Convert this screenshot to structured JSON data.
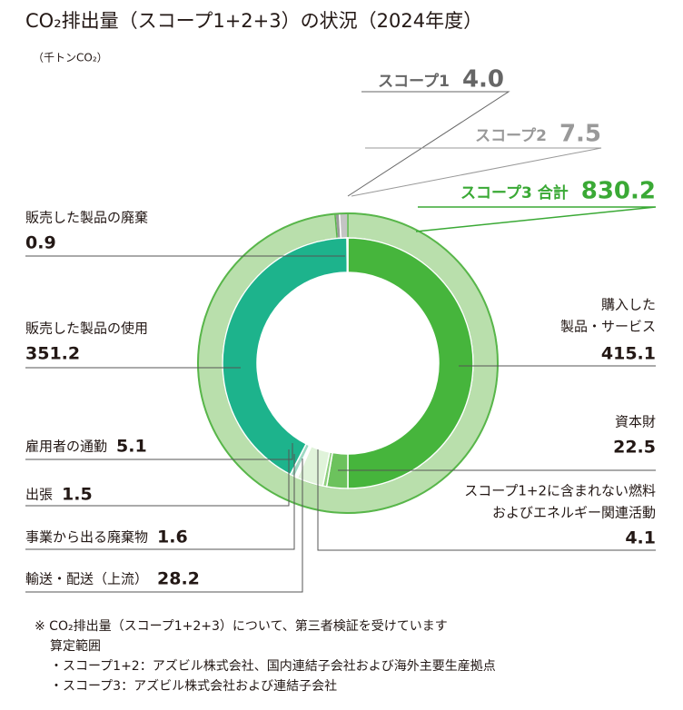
{
  "chart_data": {
    "type": "donut",
    "title": "CO₂排出量（スコープ1+2+3）の状況（2024年度）",
    "unit": "（千トンCO₂）",
    "outer": {
      "categories": [
        "スコープ1",
        "スコープ2",
        "スコープ3 合計"
      ],
      "values": [
        4.0,
        7.5,
        830.2
      ],
      "value_labels": [
        "4.0",
        "7.5",
        "830.2"
      ],
      "colors": [
        "#9a9a9a",
        "#c4c4c4",
        "#b9dfac"
      ]
    },
    "inner": {
      "categories": [
        [
          "購入した",
          "製品・サービス"
        ],
        [
          "資本財"
        ],
        [
          "スコープ1+2に含まれない燃料",
          "およびエネルギー関連活動"
        ],
        [
          "輸送・配送（上流）"
        ],
        [
          "事業から出る廃棄物"
        ],
        [
          "出張"
        ],
        [
          "雇用者の通勤"
        ],
        [
          "販売した製品の使用"
        ],
        [
          "販売した製品の廃棄"
        ]
      ],
      "values": [
        415.1,
        22.5,
        4.1,
        28.2,
        1.6,
        1.5,
        5.1,
        351.2,
        0.9
      ],
      "colors": [
        "#46b53c",
        "#6cc25d",
        "#8fd07f",
        "#e0f3da",
        "#cbead0",
        "#b6e3d2",
        "#9ed9c3",
        "#1db38c",
        "#16a07c"
      ]
    }
  },
  "notes": [
    "※ CO₂排出量（スコープ1+2+3）について、第三者検証を受けています",
    "算定範囲",
    "・スコープ1+2：アズビル株式会社、国内連結子会社および海外主要生産拠点",
    "・スコープ3：アズビル株式会社および連結子会社"
  ]
}
